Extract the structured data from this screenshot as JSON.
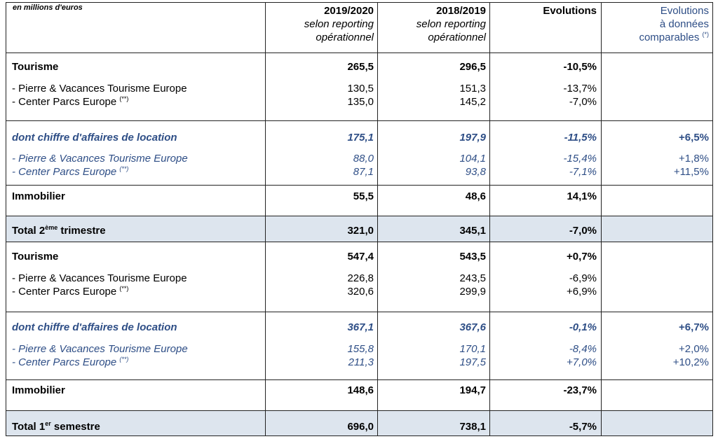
{
  "header": {
    "unit": "en millions d'euros",
    "col1_year": "2019/2020",
    "col1_line2": "selon reporting",
    "col1_line3": "opérationnel",
    "col2_year": "2018/2019",
    "col2_line2": "selon reporting",
    "col2_line3": "opérationnel",
    "col3_title": "Evolutions",
    "col4_line1": "Evolutions",
    "col4_line2": "à données",
    "col4_line3": "comparables",
    "col4_note": "(*)"
  },
  "q2": {
    "tourisme": {
      "label": "Tourisme",
      "v1": "265,5",
      "v2": "296,5",
      "evo": "-10,5%"
    },
    "pv": {
      "label": "- Pierre & Vacances Tourisme Europe",
      "v1": "130,5",
      "v2": "151,3",
      "evo": "-13,7%"
    },
    "cp": {
      "label": "- Center Parcs Europe",
      "note": "(**)",
      "v1": "135,0",
      "v2": "145,2",
      "evo": "-7,0%"
    },
    "location": {
      "label": "dont chiffre d'affaires de location",
      "v1": "175,1",
      "v2": "197,9",
      "evo": "-11,5%",
      "comp": "+6,5%"
    },
    "loc_pv": {
      "label": "- Pierre & Vacances Tourisme Europe",
      "v1": "88,0",
      "v2": "104,1",
      "evo": "-15,4%",
      "comp": "+1,8%"
    },
    "loc_cp": {
      "label": "- Center Parcs Europe",
      "note": "(**)",
      "v1": "87,1",
      "v2": "93,8",
      "evo": "-7,1%",
      "comp": "+11,5%"
    },
    "immobilier": {
      "label": "Immobilier",
      "v1": "55,5",
      "v2": "48,6",
      "evo": "14,1%"
    },
    "total": {
      "label_pre": "Total 2",
      "label_sup": "ème",
      "label_post": " trimestre",
      "v1": "321,0",
      "v2": "345,1",
      "evo": "-7,0%"
    }
  },
  "h1": {
    "tourisme": {
      "label": "Tourisme",
      "v1": "547,4",
      "v2": "543,5",
      "evo": "+0,7%"
    },
    "pv": {
      "label": "- Pierre & Vacances Tourisme Europe",
      "v1": "226,8",
      "v2": "243,5",
      "evo": "-6,9%"
    },
    "cp": {
      "label": "- Center Parcs Europe",
      "note": "(**)",
      "v1": "320,6",
      "v2": "299,9",
      "evo": "+6,9%"
    },
    "location": {
      "label": "dont chiffre d'affaires de location",
      "v1": "367,1",
      "v2": "367,6",
      "evo": "-0,1%",
      "comp": "+6,7%"
    },
    "loc_pv": {
      "label": "- Pierre & Vacances Tourisme Europe",
      "v1": "155,8",
      "v2": "170,1",
      "evo": "-8,4%",
      "comp": "+2,0%"
    },
    "loc_cp": {
      "label": "- Center Parcs Europe",
      "note": "(**)",
      "v1": "211,3",
      "v2": "197,5",
      "evo": "+7,0%",
      "comp": "+10,2%"
    },
    "immobilier": {
      "label": "Immobilier",
      "v1": "148,6",
      "v2": "194,7",
      "evo": "-23,7%"
    },
    "total": {
      "label_pre": "Total 1",
      "label_sup": "er",
      "label_post": " semestre",
      "v1": "696,0",
      "v2": "738,1",
      "evo": "-5,7%"
    }
  },
  "colors": {
    "blue_text": "#2e4e86",
    "total_band": "#dde5ee",
    "rule": "#222222"
  }
}
